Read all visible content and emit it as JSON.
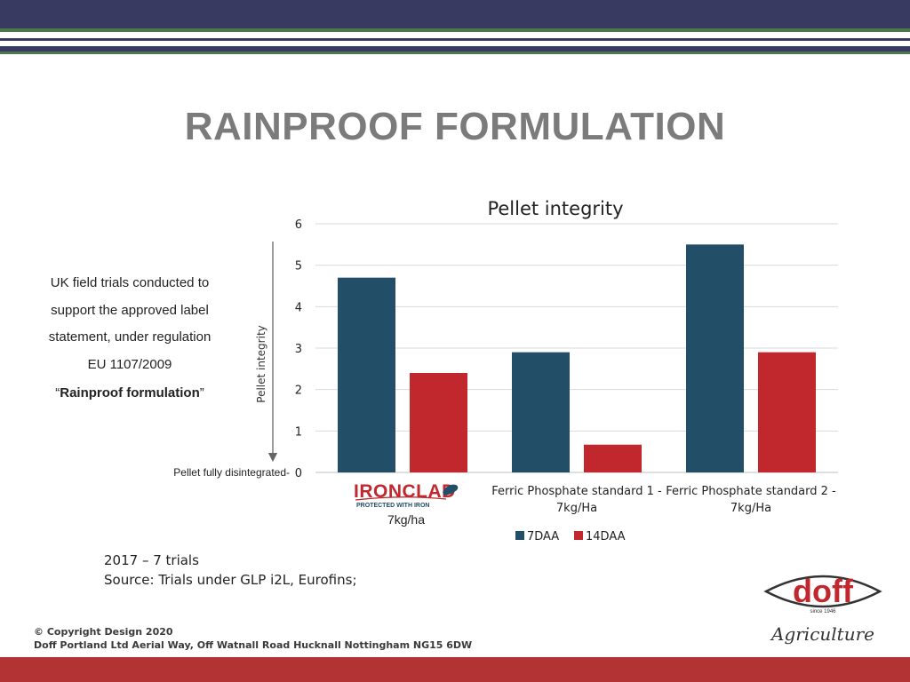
{
  "slide": {
    "title": "RAINPROOF FORMULATION"
  },
  "left_text": {
    "line1": "UK field trials conducted to",
    "line2": "support the approved label",
    "line3": "statement, under regulation",
    "line4": "EU 1107/2009",
    "quote_open": "“",
    "quote_bold": "Rainproof formulation",
    "quote_close": "”"
  },
  "side_note": "Pellet fully disintegrated-",
  "product": {
    "logo_text": "IRONCLAD",
    "logo_subtext": "PROTECTED WITH IRON",
    "rate": "7kg/ha"
  },
  "notes": {
    "line1": "2017 – 7 trials",
    "line2": "Source: Trials under GLP i2L, Eurofins;"
  },
  "footer": {
    "copyright": "© Copyright Design 2020",
    "address": "Doff Portland Ltd Aerial Way, Off Watnall Road Hucknall Nottingham NG15 6DW"
  },
  "brand": {
    "name": "doff",
    "since": "since 1946",
    "division": "Agriculture",
    "red": "#c0282e"
  },
  "colors": {
    "header_navy": "#393a62",
    "header_green": "#4a7a4a",
    "footer_red": "#b33234",
    "title_gray": "#7b7b7b"
  },
  "chart_data": {
    "type": "bar",
    "title": "Pellet integrity",
    "ylabel": "Pellet integrity",
    "xlabel": "",
    "ylim": [
      0,
      6
    ],
    "yticks": [
      0,
      1,
      2,
      3,
      4,
      5,
      6
    ],
    "grid": true,
    "legend_position": "bottom",
    "categories": [
      "",
      "Ferric Phosphate standard 1 - 7kg/Ha",
      "Ferric Phosphate standard 2 - 7kg/Ha"
    ],
    "category_lines": [
      [],
      [
        "Ferric Phosphate standard 1 -",
        "7kg/Ha"
      ],
      [
        "Ferric Phosphate standard 2 -",
        "7kg/Ha"
      ]
    ],
    "series": [
      {
        "name": "7DAA",
        "color": "#234e68",
        "values": [
          4.7,
          2.9,
          5.5
        ]
      },
      {
        "name": "14DAA",
        "color": "#c0282e",
        "values": [
          2.4,
          0.67,
          2.9
        ]
      }
    ]
  }
}
